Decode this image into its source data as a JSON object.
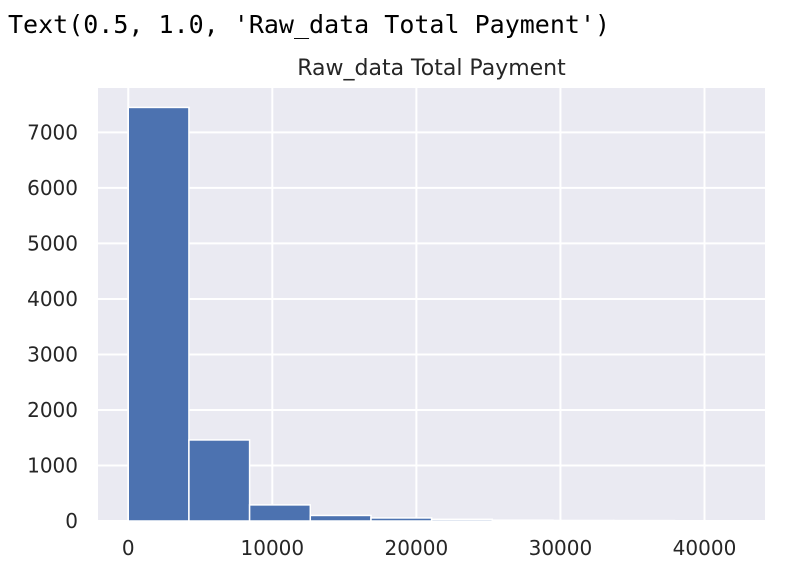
{
  "output_text": "Text(0.5, 1.0, 'Raw_data Total Payment')",
  "colors": {
    "bar": "#4c72b0",
    "plot_background": "#eaeaf2",
    "grid": "#ffffff",
    "text": "#262626"
  },
  "chart_data": {
    "type": "bar",
    "subtype": "histogram",
    "title": "Raw_data Total Payment",
    "xlabel": "",
    "ylabel": "",
    "xlim": [
      -2100,
      44200
    ],
    "ylim": [
      0,
      7800
    ],
    "bins": [
      {
        "x0": 0,
        "x1": 4212,
        "count": 7450
      },
      {
        "x0": 4212,
        "x1": 8424,
        "count": 1460
      },
      {
        "x0": 8424,
        "x1": 12636,
        "count": 290
      },
      {
        "x0": 12636,
        "x1": 16848,
        "count": 100
      },
      {
        "x0": 16848,
        "x1": 21060,
        "count": 55
      },
      {
        "x0": 21060,
        "x1": 25272,
        "count": 30
      },
      {
        "x0": 25272,
        "x1": 29484,
        "count": 15
      },
      {
        "x0": 29484,
        "x1": 33696,
        "count": 10
      },
      {
        "x0": 33696,
        "x1": 37908,
        "count": 8
      },
      {
        "x0": 37908,
        "x1": 42120,
        "count": 5
      }
    ],
    "xticks": [
      {
        "value": 0,
        "label": "0"
      },
      {
        "value": 10000,
        "label": "10000"
      },
      {
        "value": 20000,
        "label": "20000"
      },
      {
        "value": 30000,
        "label": "30000"
      },
      {
        "value": 40000,
        "label": "40000"
      }
    ],
    "yticks": [
      {
        "value": 0,
        "label": "0"
      },
      {
        "value": 1000,
        "label": "1000"
      },
      {
        "value": 2000,
        "label": "2000"
      },
      {
        "value": 3000,
        "label": "3000"
      },
      {
        "value": 4000,
        "label": "4000"
      },
      {
        "value": 5000,
        "label": "5000"
      },
      {
        "value": 6000,
        "label": "6000"
      },
      {
        "value": 7000,
        "label": "7000"
      }
    ],
    "grid": true,
    "legend": "none"
  }
}
